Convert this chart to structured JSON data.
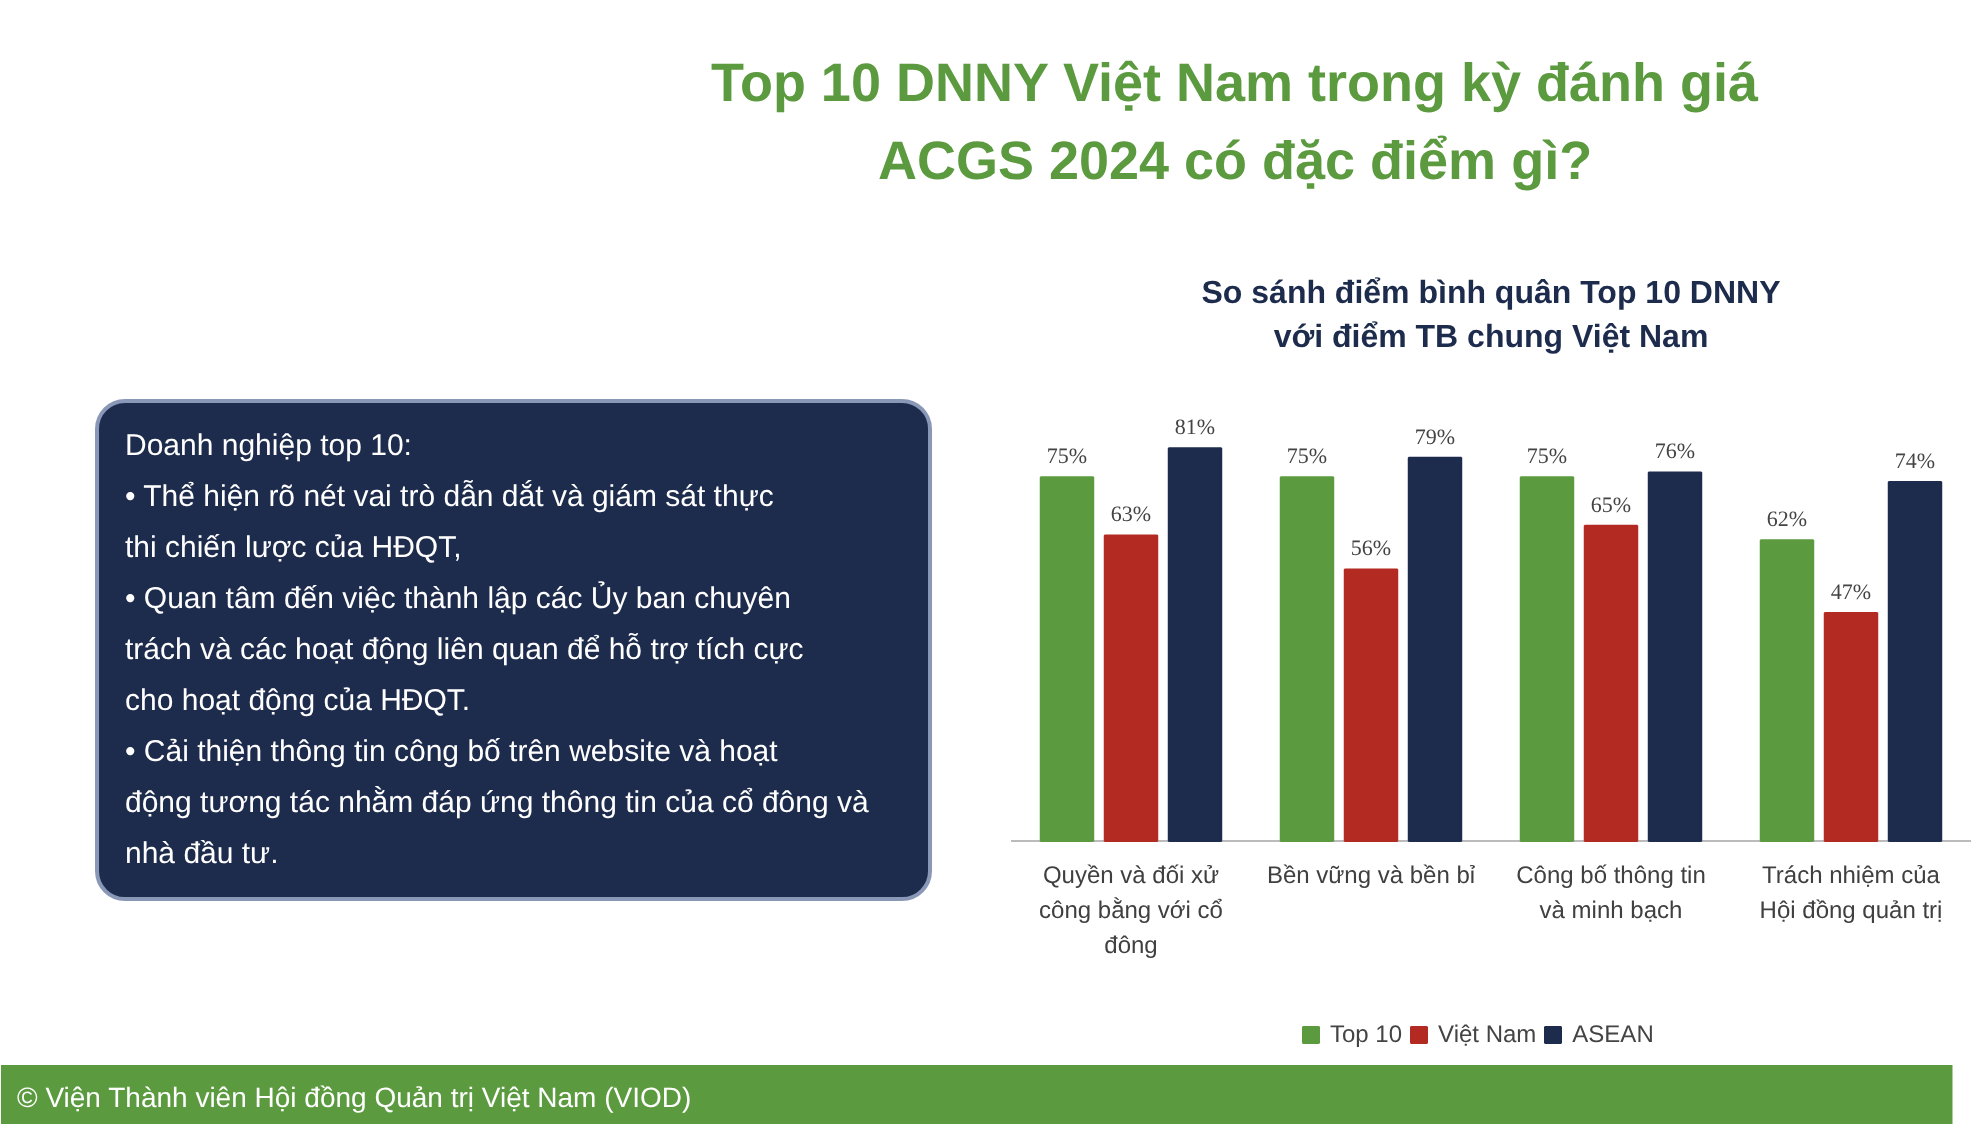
{
  "chart_data": {
    "type": "bar",
    "title": "So sánh điểm bình quân Top 10 DNNY với điểm TB chung Việt Nam",
    "categories": [
      "Quyền và đối xử công bằng với cổ đông",
      "Bền vững và bền bỉ",
      "Công bố thông tin và minh bạch",
      "Trách nhiệm của Hội đồng quản trị"
    ],
    "series": [
      {
        "name": "Top 10",
        "color": "#5b9a3f",
        "values": [
          75,
          75,
          75,
          62
        ],
        "value_labels": [
          "75%",
          "75%",
          "75%",
          "62%"
        ]
      },
      {
        "name": "Việt Nam",
        "color": "#b32a23",
        "values": [
          63,
          56,
          65,
          47
        ],
        "value_labels": [
          "63%",
          "56%",
          "65%",
          "47%"
        ]
      },
      {
        "name": "ASEAN",
        "color": "#1d2b4c",
        "values": [
          81,
          79,
          76,
          74
        ],
        "value_labels": [
          "81%",
          "79%",
          "76%",
          "74%"
        ]
      }
    ],
    "legend": "bottom",
    "annotations": [
      "Top 10 DNNY Việt Nam trong kỳ đánh giá ACGS 2024 có đặc điểm gì?",
      "Doanh nghiệp top 10:",
      "• Thể hiện rõ nét vai trò dẫn dắt và giám sát thực thi chiến lược của HĐQT,",
      "• Quan tâm đến việc thành lập các Ủy ban chuyên trách và các hoạt động liên quan để hỗ trợ tích cực cho hoạt động của HĐQT.",
      "• Cải thiện thông tin công bố trên website và hoạt động tương tác nhằm đáp ứng thông tin của cổ đông và nhà đầu tư.",
      "© Viện Thành viên Hội đồng Quản trị Việt Nam (VIOD)"
    ]
  }
}
